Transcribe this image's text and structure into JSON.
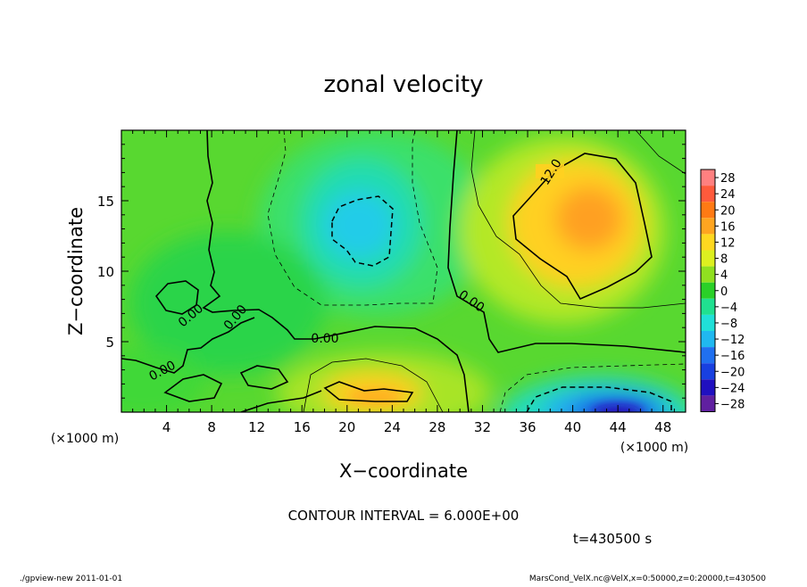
{
  "chart_data": {
    "type": "heatmap",
    "title": "zonal velocity",
    "xlabel": "X−coordinate",
    "ylabel": "Z−coordinate",
    "x_unit": "(×1000 m)",
    "y_unit": "(×1000 m)",
    "xlim": [
      0,
      50
    ],
    "ylim": [
      0,
      20
    ],
    "x_ticks": [
      "4",
      "8",
      "12",
      "16",
      "20",
      "24",
      "28",
      "32",
      "36",
      "40",
      "44",
      "48"
    ],
    "y_ticks": [
      "5",
      "10",
      "15"
    ],
    "contour_interval_text": "CONTOUR INTERVAL = 6.000E+00",
    "time_text": "t=430500 s",
    "contour_labels": [
      "12.0",
      "0.00",
      "0.00",
      "0.00",
      "0.00",
      "0.00"
    ],
    "colorbar": {
      "levels": [
        "28",
        "24",
        "20",
        "16",
        "12",
        "8",
        "4",
        "0",
        "−4",
        "−8",
        "−12",
        "−16",
        "−20",
        "−24",
        "−28"
      ],
      "colors": [
        "#ff8080",
        "#ff5a3c",
        "#ff7a14",
        "#ffa520",
        "#ffd820",
        "#ddf020",
        "#90e020",
        "#2ad028",
        "#20e090",
        "#20e0d8",
        "#20b8f0",
        "#2070f0",
        "#1840e0",
        "#2010c0",
        "#6020a0"
      ]
    },
    "fields": {
      "background": "#58d830",
      "features": [
        {
          "name": "positive-max-upper-right",
          "x": 41,
          "z": 13.5,
          "value": 16
        },
        {
          "name": "positive-max-surface",
          "x": 23,
          "z": 1.3,
          "value": 14
        },
        {
          "name": "negative-min-upper",
          "x": 21.5,
          "z": 13,
          "value": -10
        },
        {
          "name": "negative-min-surface",
          "x": 42,
          "z": 0.5,
          "value": -22
        }
      ]
    }
  },
  "footer": {
    "left": "./gpview-new 2011-01-01",
    "right": "MarsCond_VelX.nc@VelX,x=0:50000,z=0:20000,t=430500"
  }
}
